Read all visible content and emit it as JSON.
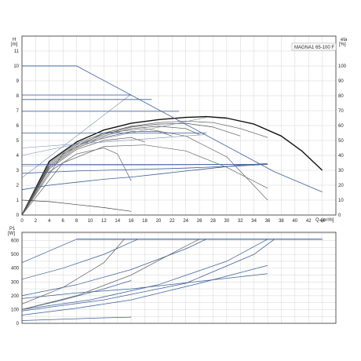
{
  "chart_data": [
    {
      "type": "line",
      "title": "MAGNA1 65-100 F",
      "y_axis_left": {
        "name": "H",
        "unit": "[m]",
        "range": [
          0,
          12
        ],
        "ticks": [
          0,
          1,
          2,
          3,
          4,
          5,
          6,
          7,
          8,
          9,
          10,
          11
        ]
      },
      "y_axis_right": {
        "name": "eta",
        "unit": "[%]",
        "range": [
          0,
          120
        ],
        "ticks": [
          0,
          10,
          20,
          30,
          40,
          50,
          60,
          70,
          80,
          90,
          100
        ]
      },
      "x_axis": {
        "name": "Q",
        "unit": "[m³/h]",
        "range": [
          0,
          46
        ],
        "ticks": [
          0,
          2,
          4,
          6,
          8,
          10,
          12,
          14,
          16,
          18,
          20,
          22,
          24,
          26,
          28,
          30,
          32,
          34,
          36,
          38,
          40,
          42,
          44
        ]
      },
      "grid": true,
      "series": [
        {
          "role": "pump-max",
          "color": "#111111",
          "x": [
            0,
            4,
            8,
            12,
            16,
            20,
            24,
            27,
            30,
            34,
            38,
            41,
            44
          ],
          "y": [
            0,
            3.6,
            4.9,
            5.7,
            6.15,
            6.4,
            6.55,
            6.6,
            6.5,
            6.1,
            5.3,
            4.3,
            3.0
          ]
        },
        {
          "role": "pump",
          "color": "#555555",
          "x": [
            0,
            4,
            8,
            12,
            16,
            20,
            24,
            28,
            32,
            36
          ],
          "y": [
            0,
            3.5,
            4.8,
            5.5,
            5.95,
            6.2,
            6.3,
            6.2,
            5.8,
            5.2
          ]
        },
        {
          "role": "pump",
          "color": "#555555",
          "x": [
            0,
            4,
            8,
            12,
            16,
            20,
            24,
            28,
            32
          ],
          "y": [
            0,
            3.4,
            4.7,
            5.4,
            5.9,
            6.1,
            6.15,
            5.9,
            5.3
          ]
        },
        {
          "role": "pump",
          "color": "#555555",
          "x": [
            0,
            4,
            8,
            12,
            16,
            20,
            24,
            26
          ],
          "y": [
            0,
            3.3,
            4.6,
            5.3,
            5.8,
            5.95,
            5.8,
            5.4
          ]
        },
        {
          "role": "pump",
          "color": "#555555",
          "x": [
            0,
            4,
            8,
            12,
            16,
            20,
            22
          ],
          "y": [
            0,
            3.2,
            4.5,
            5.2,
            5.6,
            5.6,
            5.3
          ]
        },
        {
          "role": "pump",
          "color": "#555555",
          "x": [
            0,
            4,
            8,
            12,
            16,
            18
          ],
          "y": [
            0,
            3.1,
            4.4,
            5.0,
            5.2,
            4.9
          ]
        },
        {
          "role": "efficiency",
          "color": "#666666",
          "x": [
            0,
            4,
            8,
            12,
            14,
            16
          ],
          "y": [
            0,
            2.9,
            4.1,
            4.5,
            4.1,
            2.3
          ]
        },
        {
          "role": "efficiency",
          "color": "#666666",
          "x": [
            0,
            6,
            12,
            18,
            24,
            30,
            36
          ],
          "y": [
            0,
            4.1,
            5.5,
            5.8,
            5.3,
            3.9,
            1.0
          ]
        },
        {
          "role": "efficiency",
          "color": "#666666",
          "x": [
            0,
            6,
            12,
            18,
            24,
            30,
            36
          ],
          "y": [
            0,
            3.5,
            4.6,
            4.7,
            4.3,
            3.2,
            1.8
          ]
        },
        {
          "role": "low-curve",
          "color": "#444444",
          "x": [
            0,
            4,
            8,
            12,
            16
          ],
          "y": [
            1.0,
            0.9,
            0.7,
            0.5,
            0.25
          ]
        },
        {
          "role": "system",
          "color": "#3a5f9a",
          "x": [
            0,
            8,
            37,
            44
          ],
          "y": [
            10,
            10,
            2.9,
            1.55
          ]
        },
        {
          "role": "system",
          "color": "#3a5f9a",
          "x": [
            0,
            4,
            8,
            12,
            16,
            20,
            24,
            28,
            32,
            36
          ],
          "y": [
            1.7,
            2.0,
            2.2,
            2.4,
            2.55,
            2.75,
            2.95,
            3.15,
            3.35,
            3.45
          ]
        },
        {
          "role": "system",
          "color": "#3a5f9a",
          "x": [
            0,
            8,
            16,
            24,
            32,
            36
          ],
          "y": [
            2.8,
            2.95,
            3.05,
            3.15,
            3.3,
            3.4
          ]
        },
        {
          "role": "helper",
          "color": "#7a8bb0",
          "x": [
            0,
            16
          ],
          "y": [
            2.5,
            8.1
          ]
        },
        {
          "role": "helper",
          "color": "#7a8bb0",
          "x": [
            0,
            27
          ],
          "y": [
            4.0,
            6.55
          ]
        },
        {
          "role": "helper",
          "color": "#7a8bb0",
          "x": [
            0,
            27
          ],
          "y": [
            4.5,
            5.4
          ]
        },
        {
          "role": "helper",
          "color": "#7a8bb0",
          "x": [
            0,
            36
          ],
          "y": [
            3.3,
            3.4
          ]
        },
        {
          "role": "level",
          "color": "#3a5f9a",
          "x": [
            0,
            8
          ],
          "y": [
            10,
            10
          ]
        },
        {
          "role": "level",
          "color": "#3a5f9a",
          "x": [
            0,
            16
          ],
          "y": [
            8.05,
            8.05
          ]
        },
        {
          "role": "level",
          "color": "#3a5f9a",
          "x": [
            0,
            19
          ],
          "y": [
            7.75,
            7.75
          ]
        },
        {
          "role": "level",
          "color": "#3a5f9a",
          "x": [
            0,
            23
          ],
          "y": [
            6.95,
            6.95
          ]
        },
        {
          "role": "level",
          "color": "#3a5f9a",
          "x": [
            0,
            27
          ],
          "y": [
            5.5,
            5.5
          ]
        },
        {
          "role": "level",
          "color": "#3a5f9a",
          "x": [
            0,
            36
          ],
          "y": [
            3.4,
            3.4
          ]
        }
      ]
    },
    {
      "type": "line",
      "title": "",
      "y_axis_left": {
        "name": "P1",
        "unit": "[W]",
        "range": [
          0,
          660
        ],
        "ticks": [
          0,
          100,
          200,
          300,
          400,
          500,
          600
        ]
      },
      "x_axis": {
        "range": [
          0,
          46
        ]
      },
      "grid": true,
      "series": [
        {
          "role": "power-cap",
          "color": "#3a5f9a",
          "x": [
            8,
            44
          ],
          "y": [
            610,
            610
          ]
        },
        {
          "role": "power",
          "color": "#3a5f9a",
          "x": [
            0,
            8
          ],
          "y": [
            440,
            610
          ]
        },
        {
          "role": "power",
          "color": "#3a5f9a",
          "x": [
            0,
            6,
            12,
            17
          ],
          "y": [
            320,
            400,
            500,
            610
          ]
        },
        {
          "role": "power",
          "color": "#3a5f9a",
          "x": [
            0,
            8,
            16,
            24,
            27
          ],
          "y": [
            200,
            280,
            390,
            540,
            610
          ]
        },
        {
          "role": "power",
          "color": "#3a5f9a",
          "x": [
            0,
            10,
            20,
            30,
            36
          ],
          "y": [
            100,
            170,
            280,
            450,
            610
          ]
        },
        {
          "role": "power",
          "color": "#3a5f9a",
          "x": [
            0,
            12,
            24,
            34,
            37
          ],
          "y": [
            90,
            170,
            290,
            500,
            610
          ]
        },
        {
          "role": "power",
          "color": "#3a5f9a",
          "x": [
            0,
            8,
            16,
            27,
            36
          ],
          "y": [
            180,
            220,
            250,
            310,
            360
          ]
        },
        {
          "role": "power",
          "color": "#3a5f9a",
          "x": [
            0,
            8,
            16,
            26,
            36
          ],
          "y": [
            60,
            110,
            170,
            290,
            420
          ]
        },
        {
          "role": "power",
          "color": "#3a5f9a",
          "x": [
            0,
            6,
            12,
            16
          ],
          "y": [
            20,
            30,
            40,
            45
          ]
        },
        {
          "role": "power",
          "color": "#3a5f9a",
          "x": [
            0,
            6,
            12,
            16
          ],
          "y": [
            100,
            170,
            250,
            310
          ]
        },
        {
          "role": "power-thin",
          "color": "#666666",
          "x": [
            0,
            6,
            12,
            15
          ],
          "y": [
            140,
            260,
            440,
            610
          ]
        },
        {
          "role": "power-thin",
          "color": "#666666",
          "x": [
            0,
            8,
            16,
            24,
            26
          ],
          "y": [
            100,
            200,
            350,
            560,
            610
          ]
        }
      ]
    }
  ]
}
